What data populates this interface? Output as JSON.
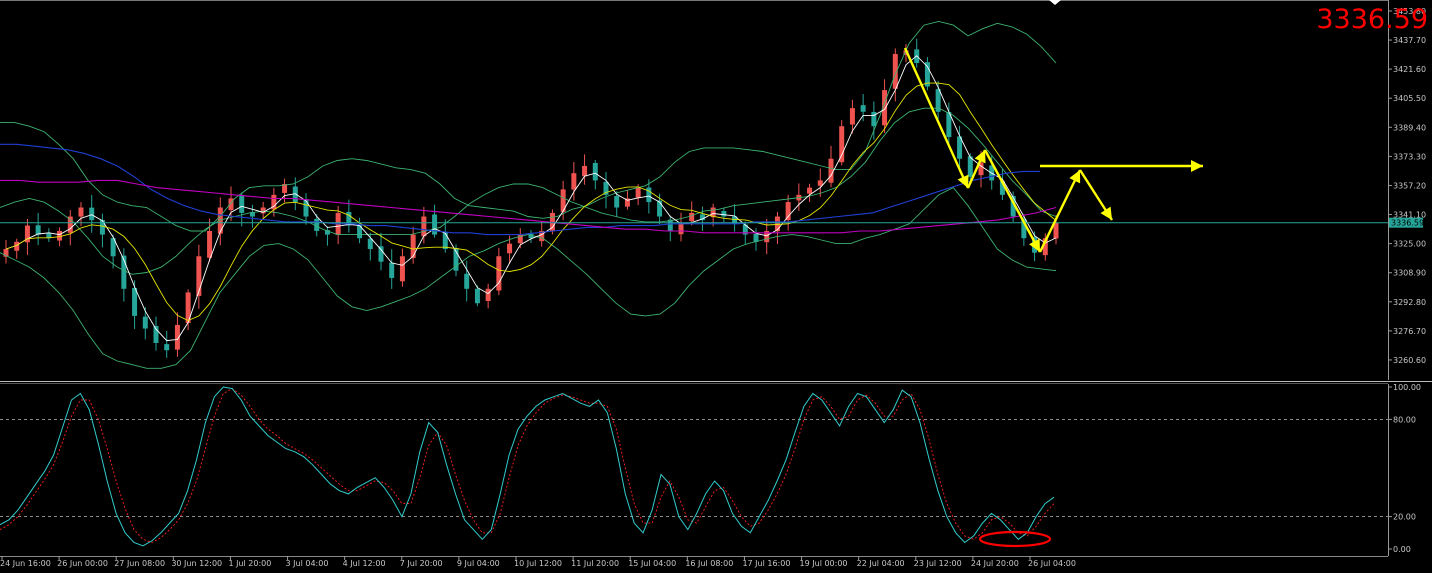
{
  "overlay_price": "3336.59",
  "colors": {
    "background": "#000000",
    "bull": "#ef5350",
    "bear": "#26a69a",
    "bollinger": "#3cb371",
    "ma_fast": "#ffffff",
    "ma_medium": "#e6e600",
    "ma_slow": "#1f3fd0",
    "ma_long": "#c000c0",
    "stoch_main": "#33cccc",
    "stoch_signal": "#ff2020",
    "annotation_arrow": "#ffff00",
    "annotation_circle": "#ff0000",
    "price_line": "#26a69a"
  },
  "chart_data": [
    {
      "type": "candlestick",
      "name": "price",
      "ylim": [
        3249.5,
        3456.0
      ],
      "y_ticks": [
        "3453.80",
        "3437.70",
        "3421.60",
        "3405.50",
        "3389.40",
        "3373.30",
        "3357.20",
        "3341.10",
        "3325.00",
        "3308.90",
        "3292.80",
        "3276.70",
        "3260.60"
      ],
      "current_price": 3336.59,
      "current_price_label": "3336.59",
      "x_ticks": [
        "24 Jun 16:00",
        "26 Jun 00:00",
        "27 Jun 08:00",
        "30 Jun 12:00",
        "1 Jul 20:00",
        "3 Jul 04:00",
        "4 Jul 12:00",
        "7 Jul 20:00",
        "9 Jul 04:00",
        "10 Jul 12:00",
        "11 Jul 20:00",
        "15 Jul 04:00",
        "16 Jul 08:00",
        "17 Jul 16:00",
        "19 Jul 00:00",
        "22 Jul 04:00",
        "23 Jul 12:00",
        "24 Jul 20:00",
        "26 Jul 04:00"
      ],
      "close_path": [
        3322,
        3326,
        3335,
        3330,
        3328,
        3332,
        3340,
        3345,
        3338,
        3330,
        3318,
        3300,
        3285,
        3278,
        3270,
        3266,
        3280,
        3298,
        3318,
        3332,
        3345,
        3350,
        3342,
        3340,
        3345,
        3352,
        3358,
        3348,
        3340,
        3332,
        3330,
        3342,
        3335,
        3328,
        3322,
        3315,
        3306,
        3318,
        3330,
        3340,
        3330,
        3322,
        3310,
        3300,
        3292,
        3300,
        3318,
        3325,
        3330,
        3328,
        3332,
        3342,
        3355,
        3364,
        3368,
        3360,
        3352,
        3345,
        3350,
        3356,
        3348,
        3340,
        3332,
        3336,
        3342,
        3338,
        3345,
        3340,
        3336,
        3330,
        3326,
        3332,
        3340,
        3348,
        3352,
        3356,
        3360,
        3372,
        3390,
        3400,
        3398,
        3390,
        3410,
        3430,
        3432,
        3425,
        3412,
        3398,
        3384,
        3372,
        3362,
        3370,
        3360,
        3352,
        3340,
        3328,
        3320,
        3328,
        3336.59
      ],
      "bollinger_upper": [
        3392,
        3392,
        3390,
        3387,
        3380,
        3372,
        3360,
        3352,
        3348,
        3346,
        3345,
        3340,
        3335,
        3332,
        3332,
        3340,
        3350,
        3356,
        3357,
        3357,
        3358,
        3362,
        3368,
        3371,
        3372,
        3371,
        3369,
        3367,
        3366,
        3364,
        3358,
        3350,
        3346,
        3345,
        3344,
        3343,
        3340,
        3339,
        3340,
        3344,
        3346,
        3350,
        3353,
        3355,
        3357,
        3362,
        3370,
        3376,
        3378,
        3378,
        3378,
        3377,
        3376,
        3374,
        3372,
        3370,
        3368,
        3366,
        3366,
        3376,
        3396,
        3418,
        3436,
        3446,
        3448,
        3446,
        3440,
        3444,
        3447,
        3445,
        3441,
        3434,
        3425
      ],
      "bollinger_middle": [
        3345,
        3348,
        3350,
        3348,
        3343,
        3337,
        3328,
        3318,
        3312,
        3308,
        3309,
        3312,
        3318,
        3326,
        3333,
        3338,
        3340,
        3342,
        3343,
        3342,
        3340,
        3337,
        3333,
        3330,
        3330,
        3330,
        3330,
        3330,
        3330,
        3332,
        3334,
        3340,
        3347,
        3352,
        3356,
        3358,
        3358,
        3356,
        3352,
        3348,
        3345,
        3342,
        3340,
        3338,
        3337,
        3337,
        3338,
        3340,
        3343,
        3344,
        3346,
        3347,
        3348,
        3349,
        3350,
        3351,
        3353,
        3356,
        3362,
        3370,
        3382,
        3392,
        3398,
        3400,
        3400,
        3396,
        3389,
        3380,
        3370,
        3360,
        3352,
        3343,
        3340
      ],
      "bollinger_lower": [
        3320,
        3316,
        3312,
        3306,
        3298,
        3288,
        3275,
        3264,
        3260,
        3258,
        3256,
        3256,
        3258,
        3266,
        3282,
        3298,
        3308,
        3318,
        3324,
        3325,
        3322,
        3316,
        3306,
        3296,
        3290,
        3288,
        3290,
        3293,
        3296,
        3300,
        3306,
        3312,
        3318,
        3321,
        3325,
        3328,
        3330,
        3328,
        3322,
        3315,
        3308,
        3300,
        3292,
        3286,
        3285,
        3286,
        3292,
        3302,
        3310,
        3316,
        3322,
        3325,
        3327,
        3329,
        3330,
        3329,
        3327,
        3325,
        3325,
        3328,
        3330,
        3333,
        3336,
        3344,
        3352,
        3356,
        3346,
        3334,
        3322,
        3316,
        3312,
        3311,
        3310
      ],
      "ma_slow": [
        3380,
        3380,
        3379,
        3378,
        3377,
        3375,
        3372,
        3368,
        3362,
        3355,
        3350,
        3346,
        3343,
        3341,
        3340,
        3339,
        3338,
        3337,
        3337,
        3337,
        3336,
        3336,
        3335,
        3335,
        3334,
        3333,
        3332,
        3331,
        3331,
        3330,
        3330,
        3330,
        3331,
        3332,
        3333,
        3334,
        3334,
        3335,
        3335,
        3335,
        3336,
        3336,
        3336,
        3336,
        3336,
        3337,
        3337,
        3337,
        3338,
        3339,
        3340,
        3341,
        3342,
        3345,
        3348,
        3351,
        3354,
        3357,
        3360,
        3362,
        3364,
        3365,
        3365
      ],
      "ma_long": [
        3360,
        3360,
        3359,
        3359,
        3359,
        3360,
        3360,
        3358,
        3356,
        3355,
        3354,
        3353,
        3352,
        3351,
        3350,
        3350,
        3349,
        3348,
        3347,
        3346,
        3345,
        3344,
        3343,
        3342,
        3341,
        3340,
        3339,
        3338,
        3337,
        3336,
        3335,
        3334,
        3333,
        3333,
        3332,
        3332,
        3331,
        3331,
        3331,
        3331,
        3331,
        3331,
        3331,
        3331,
        3332,
        3332,
        3333,
        3334,
        3335,
        3336,
        3337,
        3338,
        3340,
        3342,
        3345
      ]
    },
    {
      "type": "line",
      "name": "stochastic",
      "ylim": [
        0,
        100
      ],
      "y_ticks": [
        "100.00",
        "80.00",
        "20.00",
        "0.00"
      ],
      "levels": [
        80,
        20
      ],
      "main": [
        15,
        18,
        24,
        32,
        40,
        48,
        58,
        75,
        92,
        96,
        86,
        65,
        42,
        22,
        10,
        4,
        2,
        5,
        10,
        16,
        22,
        36,
        55,
        78,
        94,
        100,
        99,
        92,
        82,
        76,
        70,
        66,
        62,
        60,
        57,
        52,
        46,
        40,
        36,
        34,
        38,
        41,
        44,
        38,
        30,
        20,
        34,
        60,
        78,
        72,
        52,
        34,
        18,
        12,
        6,
        12,
        34,
        58,
        74,
        82,
        88,
        92,
        94,
        96,
        93,
        90,
        88,
        92,
        84,
        62,
        34,
        16,
        10,
        24,
        46,
        40,
        20,
        12,
        22,
        34,
        42,
        36,
        22,
        14,
        10,
        20,
        30,
        42,
        55,
        72,
        88,
        96,
        92,
        84,
        76,
        88,
        96,
        94,
        86,
        78,
        86,
        98,
        94,
        78,
        56,
        36,
        20,
        10,
        4,
        8,
        16,
        22,
        18,
        12,
        6,
        10,
        20,
        28,
        32
      ],
      "signal": [
        12,
        15,
        20,
        27,
        35,
        43,
        52,
        66,
        82,
        92,
        92,
        80,
        62,
        42,
        25,
        12,
        6,
        4,
        7,
        12,
        18,
        28,
        42,
        62,
        82,
        96,
        99,
        95,
        88,
        80,
        74,
        70,
        65,
        62,
        59,
        55,
        50,
        45,
        40,
        36,
        36,
        39,
        42,
        41,
        36,
        28,
        28,
        44,
        64,
        72,
        64,
        46,
        30,
        18,
        10,
        10,
        22,
        44,
        64,
        76,
        84,
        90,
        93,
        95,
        94,
        92,
        90,
        90,
        88,
        74,
        50,
        28,
        16,
        16,
        32,
        42,
        32,
        18,
        16,
        26,
        36,
        38,
        30,
        20,
        14,
        16,
        24,
        34,
        46,
        62,
        80,
        92,
        94,
        88,
        80,
        82,
        92,
        95,
        90,
        82,
        82,
        92,
        96,
        86,
        68,
        46,
        28,
        16,
        8,
        6,
        10,
        18,
        20,
        16,
        10,
        8,
        14,
        22,
        28
      ]
    }
  ]
}
